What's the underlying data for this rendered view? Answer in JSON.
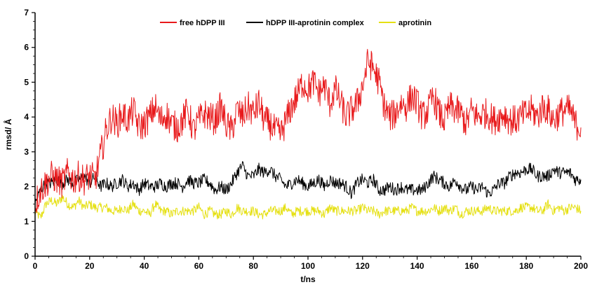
{
  "chart_data": {
    "type": "line",
    "title": "",
    "xlabel": "t/ns",
    "ylabel": "rmsd/ Å",
    "xlim": [
      0,
      200
    ],
    "ylim": [
      0,
      7
    ],
    "x_ticks": [
      0,
      20,
      40,
      60,
      80,
      100,
      120,
      140,
      160,
      180,
      200
    ],
    "y_ticks": [
      0,
      1,
      2,
      3,
      4,
      5,
      6,
      7
    ],
    "grid": false,
    "legend_position": "top-center",
    "x": [
      0,
      2,
      4,
      6,
      8,
      10,
      12,
      14,
      16,
      18,
      20,
      22,
      24,
      26,
      28,
      30,
      32,
      34,
      36,
      38,
      40,
      42,
      44,
      46,
      48,
      50,
      52,
      54,
      56,
      58,
      60,
      62,
      64,
      66,
      68,
      70,
      72,
      74,
      76,
      78,
      80,
      82,
      84,
      86,
      88,
      90,
      92,
      94,
      96,
      98,
      100,
      102,
      104,
      106,
      108,
      110,
      112,
      114,
      116,
      118,
      120,
      122,
      124,
      126,
      128,
      130,
      132,
      134,
      136,
      138,
      140,
      142,
      144,
      146,
      148,
      150,
      152,
      154,
      156,
      158,
      160,
      162,
      164,
      166,
      168,
      170,
      172,
      174,
      176,
      178,
      180,
      182,
      184,
      186,
      188,
      190,
      192,
      194,
      196,
      198,
      200
    ],
    "series": [
      {
        "name": "free hDPP III",
        "color": "#e8191b",
        "values": [
          1.5,
          1.9,
          2.1,
          2.3,
          2.2,
          2.1,
          2.4,
          2.2,
          2.3,
          2.2,
          2.3,
          2.2,
          2.9,
          3.6,
          4.0,
          3.8,
          4.1,
          3.9,
          4.2,
          3.7,
          3.8,
          4.0,
          4.3,
          3.9,
          4.1,
          3.8,
          3.7,
          3.9,
          4.2,
          3.6,
          3.9,
          4.1,
          4.0,
          3.9,
          4.3,
          3.8,
          3.6,
          4.2,
          4.0,
          4.3,
          4.1,
          4.4,
          3.9,
          3.8,
          3.6,
          3.5,
          3.9,
          4.3,
          4.6,
          5.0,
          4.8,
          5.0,
          4.7,
          4.9,
          4.4,
          4.8,
          4.4,
          4.0,
          4.2,
          4.4,
          4.9,
          5.6,
          5.4,
          5.0,
          4.3,
          4.0,
          4.1,
          4.4,
          4.3,
          4.6,
          4.4,
          4.0,
          4.2,
          4.6,
          4.1,
          3.9,
          4.3,
          4.2,
          4.1,
          3.8,
          4.2,
          4.0,
          4.1,
          4.1,
          3.9,
          4.0,
          4.1,
          3.9,
          3.9,
          4.0,
          4.1,
          4.2,
          4.0,
          4.3,
          4.2,
          3.9,
          4.1,
          4.2,
          4.2,
          3.8,
          3.7
        ]
      },
      {
        "name": "hDPP III-aprotinin complex",
        "color": "#000000",
        "values": [
          1.5,
          1.9,
          2.1,
          2.1,
          2.2,
          2.1,
          2.2,
          2.1,
          2.2,
          2.3,
          2.1,
          2.3,
          2.0,
          2.1,
          2.0,
          2.1,
          2.2,
          2.0,
          2.1,
          1.9,
          2.1,
          2.0,
          2.0,
          2.1,
          2.0,
          2.1,
          2.1,
          2.0,
          2.2,
          2.1,
          2.1,
          2.2,
          2.1,
          1.9,
          2.0,
          1.9,
          2.1,
          2.4,
          2.6,
          2.3,
          2.3,
          2.5,
          2.4,
          2.5,
          2.3,
          2.2,
          2.0,
          2.1,
          2.2,
          2.1,
          2.0,
          2.1,
          2.2,
          2.0,
          2.2,
          2.1,
          2.1,
          2.0,
          1.8,
          2.1,
          2.2,
          2.1,
          2.2,
          1.9,
          1.9,
          2.0,
          1.9,
          2.0,
          1.9,
          1.9,
          1.9,
          1.9,
          2.1,
          2.3,
          2.2,
          2.1,
          2.0,
          2.2,
          2.0,
          1.9,
          2.0,
          1.9,
          2.0,
          1.8,
          1.9,
          2.1,
          2.1,
          2.3,
          2.4,
          2.4,
          2.5,
          2.5,
          2.3,
          2.3,
          2.3,
          2.5,
          2.4,
          2.4,
          2.4,
          2.2,
          2.2
        ]
      },
      {
        "name": "aprotinin",
        "color": "#e5e012",
        "values": [
          1.3,
          1.1,
          1.5,
          1.6,
          1.5,
          1.7,
          1.5,
          1.4,
          1.6,
          1.4,
          1.5,
          1.4,
          1.4,
          1.4,
          1.3,
          1.3,
          1.4,
          1.3,
          1.5,
          1.3,
          1.3,
          1.2,
          1.5,
          1.3,
          1.3,
          1.2,
          1.3,
          1.3,
          1.3,
          1.3,
          1.4,
          1.2,
          1.3,
          1.2,
          1.2,
          1.3,
          1.2,
          1.4,
          1.3,
          1.3,
          1.3,
          1.2,
          1.2,
          1.3,
          1.3,
          1.3,
          1.4,
          1.2,
          1.3,
          1.3,
          1.3,
          1.3,
          1.3,
          1.2,
          1.4,
          1.3,
          1.3,
          1.3,
          1.3,
          1.3,
          1.4,
          1.3,
          1.3,
          1.2,
          1.3,
          1.3,
          1.3,
          1.3,
          1.3,
          1.4,
          1.3,
          1.3,
          1.3,
          1.4,
          1.3,
          1.4,
          1.3,
          1.4,
          1.2,
          1.3,
          1.3,
          1.3,
          1.3,
          1.4,
          1.3,
          1.3,
          1.3,
          1.3,
          1.3,
          1.4,
          1.4,
          1.4,
          1.3,
          1.3,
          1.5,
          1.3,
          1.4,
          1.3,
          1.4,
          1.4,
          1.3
        ]
      }
    ]
  }
}
